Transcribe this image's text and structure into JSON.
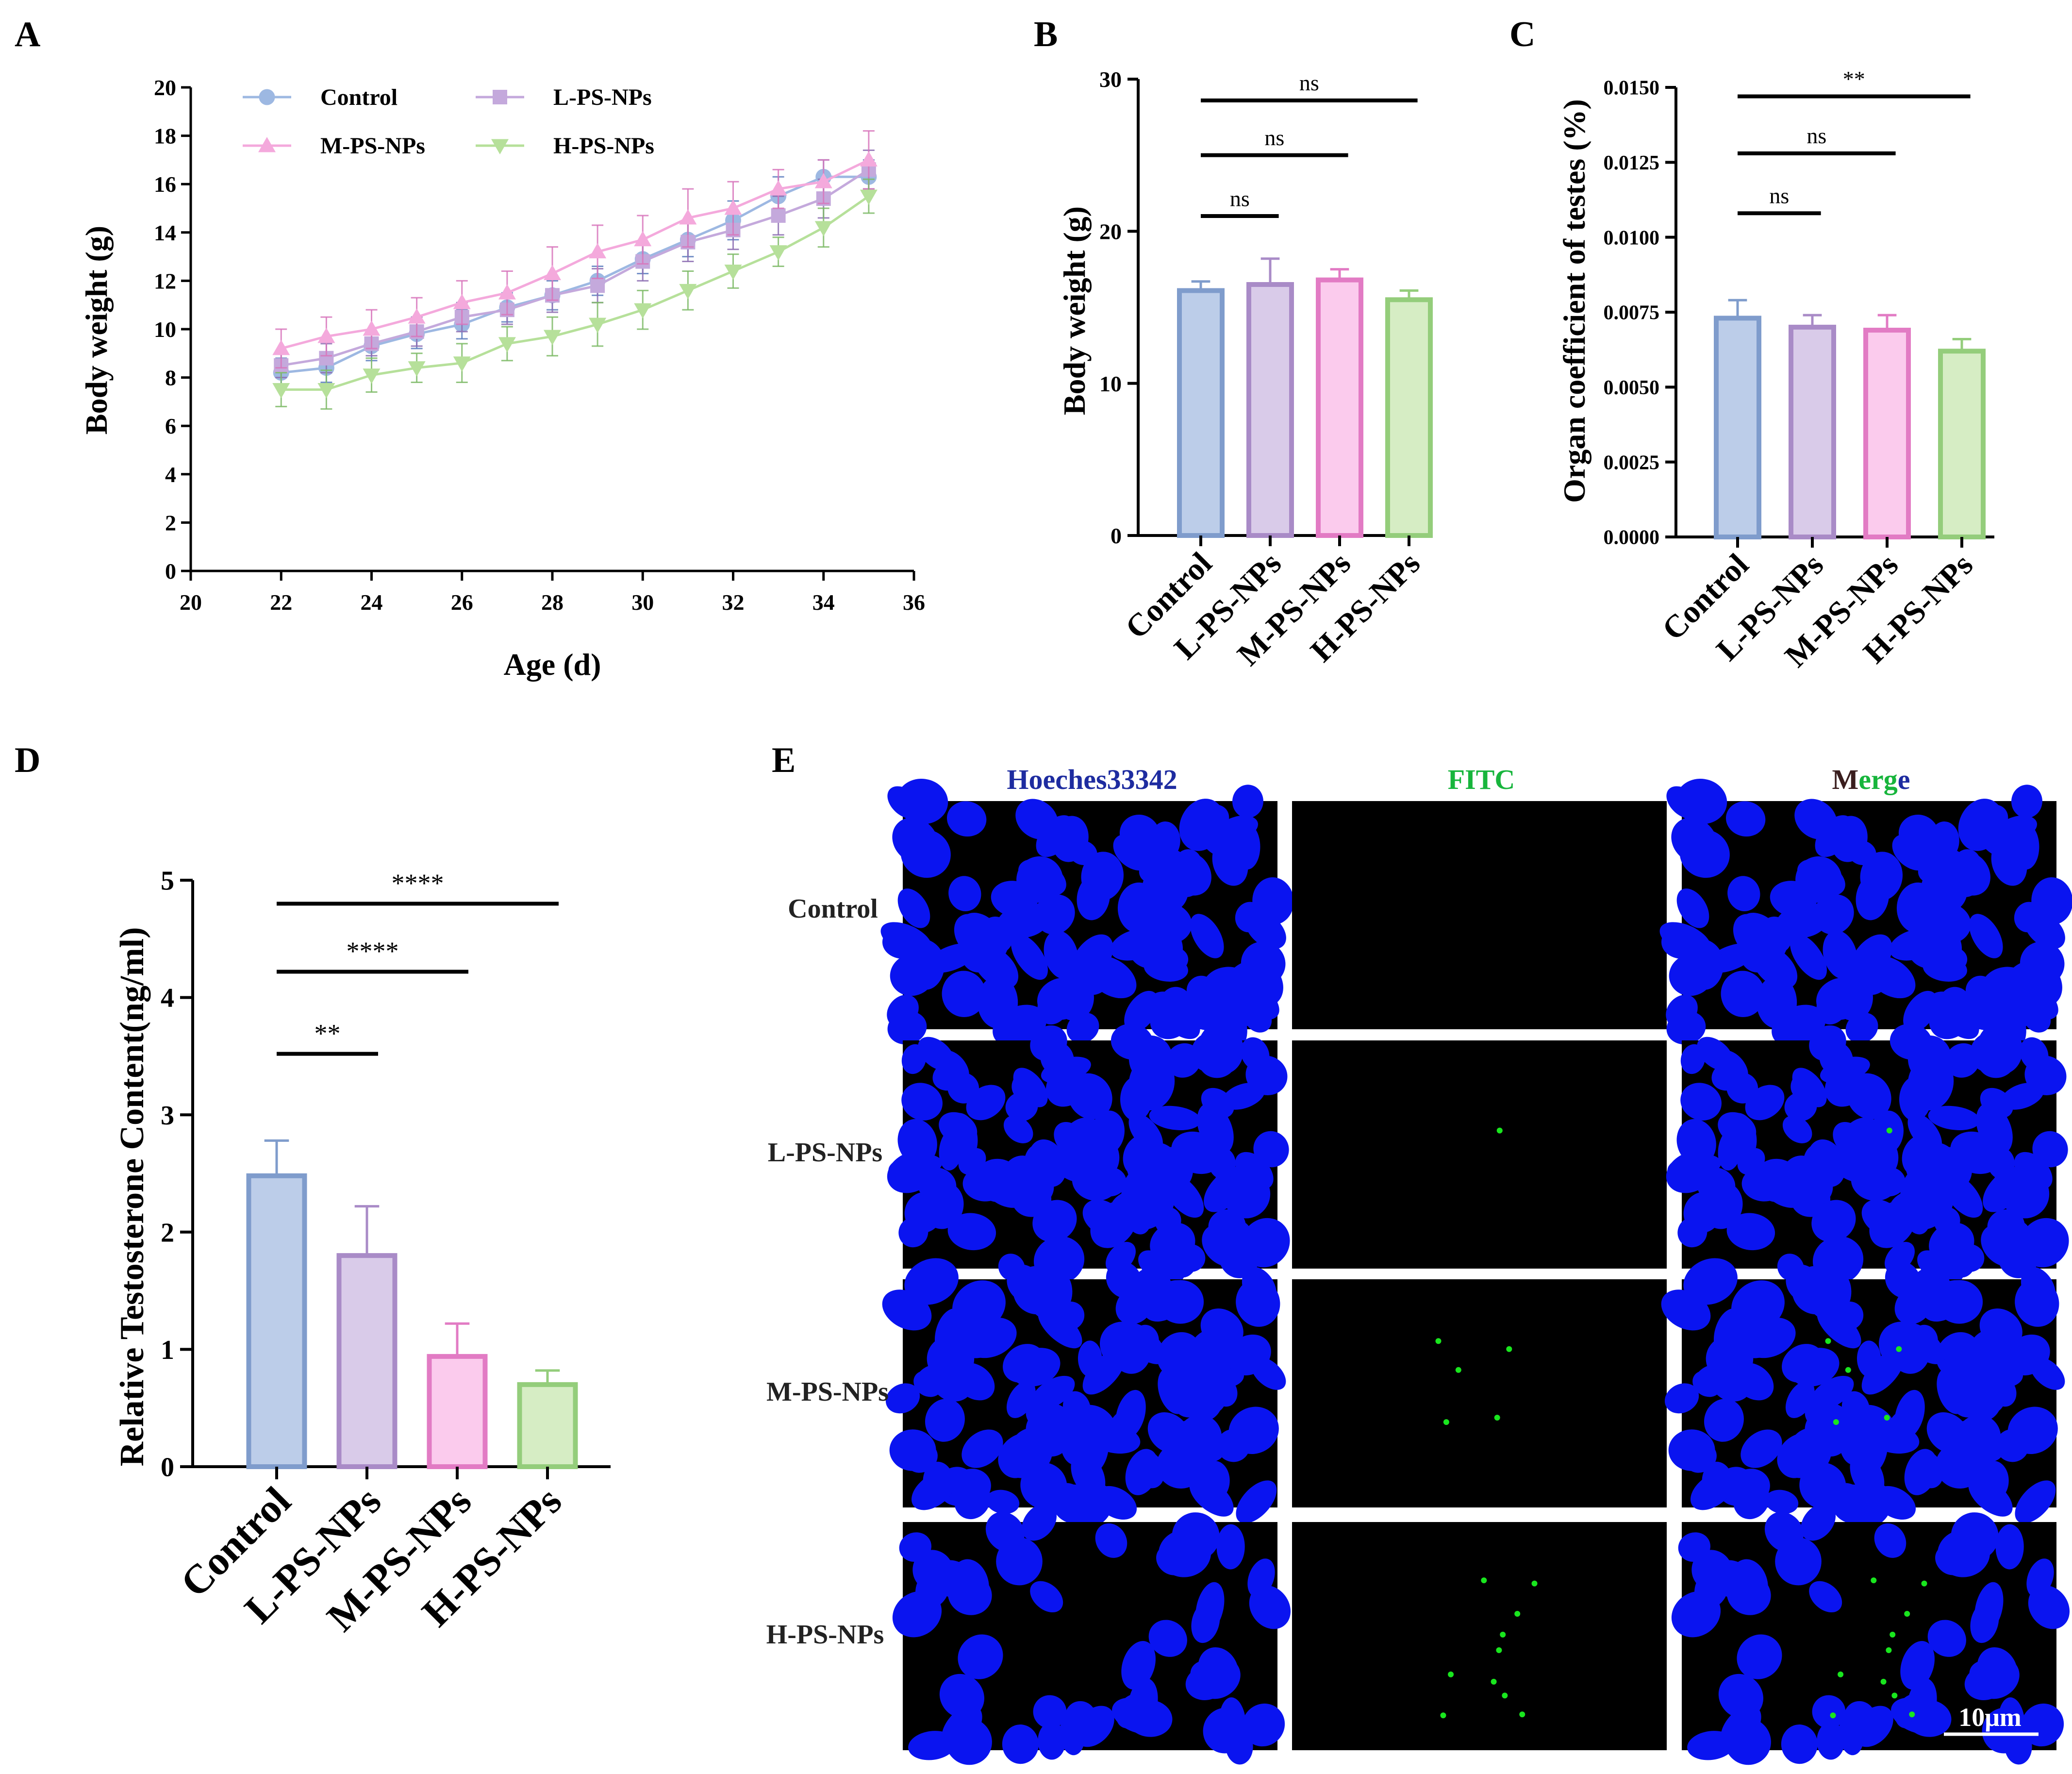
{
  "panels": {
    "A": "A",
    "B": "B",
    "C": "C",
    "D": "D",
    "E": "E"
  },
  "colors": {
    "Control": "#9db8e2",
    "L-PS-NPs": "#c4a9dc",
    "M-PS-NPs": "#f4a9dc",
    "H-PS-NPs": "#b6e09a",
    "bar_edge_Control": "#7f9ccc",
    "bar_edge_L-PS-NPs": "#a98bc7",
    "bar_edge_M-PS-NPs": "#e27bc4",
    "bar_edge_H-PS-NPs": "#94cd7b",
    "bar_fill_Control": "#bccde9",
    "bar_fill_L-PS-NPs": "#d9cbe9",
    "bar_fill_M-PS-NPs": "#fbcbed",
    "bar_fill_H-PS-NPs": "#d6edc4",
    "nucleus": "#0a14f0",
    "fitc": "#19e61e"
  },
  "chart_data": [
    {
      "id": "A",
      "type": "line",
      "xlabel": "Age (d)",
      "ylabel": "Body weight (g)",
      "xlim": [
        20,
        36
      ],
      "ylim": [
        0,
        20
      ],
      "xticks": [
        20,
        22,
        24,
        26,
        28,
        30,
        32,
        34,
        36
      ],
      "yticks": [
        0,
        2,
        4,
        6,
        8,
        10,
        12,
        14,
        16,
        18,
        20
      ],
      "legend": "top-left, two columns",
      "x": [
        22,
        23,
        24,
        25,
        26,
        27,
        28,
        29,
        30,
        31,
        32,
        33,
        34,
        35
      ],
      "series": [
        {
          "name": "Control",
          "marker": "circle",
          "values": [
            8.2,
            8.4,
            9.3,
            9.8,
            10.2,
            10.9,
            11.4,
            12.0,
            12.9,
            13.7,
            14.5,
            15.5,
            16.3,
            16.3
          ],
          "errors": [
            0.6,
            0.6,
            0.6,
            0.6,
            0.6,
            0.6,
            0.6,
            0.6,
            0.6,
            0.7,
            0.8,
            0.8,
            0.7,
            0.7
          ]
        },
        {
          "name": "L-PS-NPs",
          "marker": "square",
          "values": [
            8.5,
            8.8,
            9.4,
            9.9,
            10.5,
            10.8,
            11.4,
            11.8,
            12.8,
            13.6,
            14.1,
            14.7,
            15.4,
            16.6
          ],
          "errors": [
            0.5,
            0.6,
            0.5,
            0.6,
            0.6,
            0.6,
            0.7,
            0.7,
            0.8,
            0.8,
            0.8,
            0.8,
            0.8,
            0.8
          ]
        },
        {
          "name": "M-PS-NPs",
          "marker": "triangle-up",
          "values": [
            9.2,
            9.7,
            10.0,
            10.5,
            11.1,
            11.5,
            12.3,
            13.2,
            13.7,
            14.6,
            15.0,
            15.8,
            16.1,
            17.0
          ],
          "errors": [
            0.8,
            0.8,
            0.8,
            0.8,
            0.9,
            0.9,
            1.1,
            1.1,
            1.0,
            1.2,
            1.1,
            0.8,
            0.9,
            1.2
          ]
        },
        {
          "name": "H-PS-NPs",
          "marker": "triangle-down",
          "values": [
            7.5,
            7.5,
            8.1,
            8.4,
            8.6,
            9.4,
            9.7,
            10.2,
            10.8,
            11.6,
            12.4,
            13.2,
            14.2,
            15.5
          ],
          "errors": [
            0.7,
            0.8,
            0.7,
            0.6,
            0.8,
            0.7,
            0.8,
            0.9,
            0.8,
            0.8,
            0.7,
            0.6,
            0.8,
            0.7
          ]
        }
      ]
    },
    {
      "id": "B",
      "type": "bar",
      "ylabel": "Body weight (g)",
      "ylim": [
        0,
        30
      ],
      "yticks": [
        0,
        10,
        20,
        30
      ],
      "categories": [
        "Control",
        "L-PS-NPs",
        "M-PS-NPs",
        "H-PS-NPs"
      ],
      "values": [
        16.1,
        16.5,
        16.8,
        15.5
      ],
      "errors": [
        0.6,
        1.7,
        0.7,
        0.6
      ],
      "significance": [
        {
          "from": 0,
          "to": 1,
          "y": 21.0,
          "label": "ns"
        },
        {
          "from": 0,
          "to": 2,
          "y": 25.0,
          "label": "ns"
        },
        {
          "from": 0,
          "to": 3,
          "y": 28.6,
          "label": "ns"
        }
      ]
    },
    {
      "id": "C",
      "type": "bar",
      "ylabel": "Organ  coefficient  of  testes (%)",
      "ylim": [
        0,
        0.015
      ],
      "yticks": [
        "0.0000",
        "0.0025",
        "0.0050",
        "0.0075",
        "0.0100",
        "0.0125",
        "0.0150"
      ],
      "categories": [
        "Control",
        "L-PS-NPs",
        "M-PS-NPs",
        "H-PS-NPs"
      ],
      "values": [
        0.0073,
        0.007,
        0.0069,
        0.0062
      ],
      "errors": [
        0.0006,
        0.0004,
        0.0005,
        0.0004
      ],
      "significance": [
        {
          "from": 0,
          "to": 1,
          "y": 0.0108,
          "label": "ns"
        },
        {
          "from": 0,
          "to": 2,
          "y": 0.0128,
          "label": "ns"
        },
        {
          "from": 0,
          "to": 3,
          "y": 0.0147,
          "label": "**"
        }
      ]
    },
    {
      "id": "D",
      "type": "bar",
      "ylabel": "Relative Testosterone Content(ng/ml)",
      "ylim": [
        0,
        5
      ],
      "yticks": [
        0,
        1,
        2,
        3,
        4,
        5
      ],
      "categories": [
        "Control",
        "L-PS-NPs",
        "M-PS-NPs",
        "H-PS-NPs"
      ],
      "values": [
        2.48,
        1.8,
        0.94,
        0.7
      ],
      "errors": [
        0.3,
        0.42,
        0.28,
        0.12
      ],
      "significance": [
        {
          "from": 0,
          "to": 1,
          "y": 3.52,
          "label": "**"
        },
        {
          "from": 0,
          "to": 2,
          "y": 4.22,
          "label": "****"
        },
        {
          "from": 0,
          "to": 3,
          "y": 4.8,
          "label": "****"
        }
      ]
    }
  ],
  "microscopy": {
    "columns": [
      "Hoeches33342",
      "FITC",
      "Merge"
    ],
    "merge_parts": [
      "M",
      "erg",
      "e"
    ],
    "rows": [
      "Control",
      "L-PS-NPs",
      "M-PS-NPs",
      "H-PS-NPs"
    ],
    "scale_bar": "10μm"
  }
}
